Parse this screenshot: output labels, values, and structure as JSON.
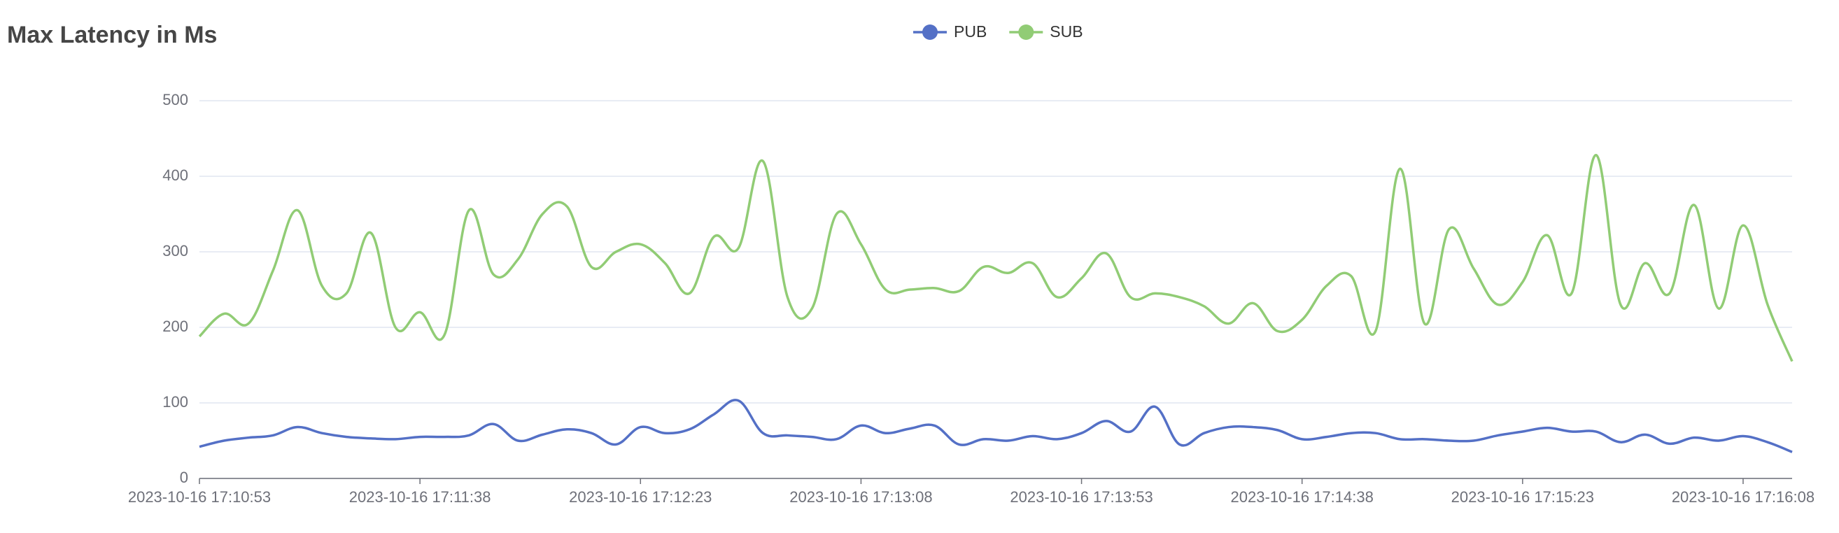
{
  "chart_data": {
    "type": "line",
    "title": "Max Latency in Ms",
    "categories": [
      "2023-10-16 17:10:53",
      null,
      null,
      null,
      null,
      null,
      null,
      null,
      null,
      "2023-10-16 17:11:38",
      null,
      null,
      null,
      null,
      null,
      null,
      null,
      null,
      "2023-10-16 17:12:23",
      null,
      null,
      null,
      null,
      null,
      null,
      null,
      null,
      "2023-10-16 17:13:08",
      null,
      null,
      null,
      null,
      null,
      null,
      null,
      null,
      "2023-10-16 17:13:53",
      null,
      null,
      null,
      null,
      null,
      null,
      null,
      null,
      "2023-10-16 17:14:38",
      null,
      null,
      null,
      null,
      null,
      null,
      null,
      null,
      "2023-10-16 17:15:23",
      null,
      null,
      null,
      null,
      null,
      null,
      null,
      null,
      "2023-10-16 17:16:08",
      null,
      null
    ],
    "series": [
      {
        "name": "PUB",
        "color": "#5470c6",
        "values": [
          42,
          50,
          54,
          57,
          68,
          60,
          55,
          53,
          52,
          55,
          55,
          57,
          72,
          50,
          58,
          65,
          60,
          45,
          68,
          60,
          65,
          85,
          103,
          60,
          57,
          55,
          52,
          70,
          60,
          66,
          70,
          45,
          52,
          50,
          56,
          52,
          60,
          76,
          62,
          95,
          45,
          60,
          68,
          68,
          64,
          52,
          55,
          60,
          60,
          52,
          52,
          50,
          50,
          57,
          62,
          67,
          62,
          62,
          48,
          58,
          46,
          54,
          50,
          56,
          48,
          35
        ]
      },
      {
        "name": "SUB",
        "color": "#91cc75",
        "values": [
          188,
          218,
          205,
          275,
          355,
          255,
          245,
          325,
          200,
          220,
          190,
          355,
          270,
          290,
          350,
          360,
          280,
          300,
          310,
          285,
          245,
          320,
          305,
          420,
          240,
          225,
          350,
          310,
          250,
          250,
          252,
          248,
          280,
          272,
          285,
          240,
          265,
          298,
          240,
          245,
          240,
          228,
          205,
          232,
          195,
          210,
          255,
          268,
          195,
          410,
          205,
          330,
          278,
          230,
          260,
          322,
          245,
          428,
          230,
          285,
          245,
          362,
          225,
          335,
          230,
          155
        ]
      }
    ],
    "ylim": [
      0,
      500
    ],
    "yticks": [
      0,
      100,
      200,
      300,
      400,
      500
    ],
    "grid": true
  }
}
